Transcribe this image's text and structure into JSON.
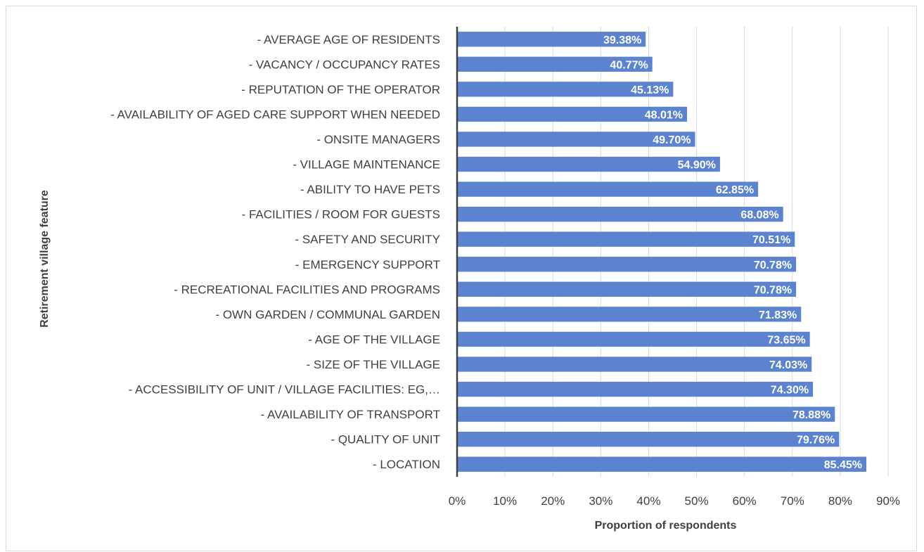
{
  "chart_data": {
    "type": "bar",
    "orientation": "horizontal",
    "title": "",
    "xlabel": "Proportion of respondents",
    "ylabel": "Retirement village feature",
    "xlim": [
      0,
      90
    ],
    "x_ticks": [
      "0%",
      "10%",
      "20%",
      "30%",
      "40%",
      "50%",
      "60%",
      "70%",
      "80%",
      "90%"
    ],
    "grid": "vertical",
    "legend": "none",
    "bar_color": "#5b83cf",
    "categories": [
      "- AVERAGE AGE OF RESIDENTS",
      "- VACANCY / OCCUPANCY RATES",
      "- REPUTATION OF THE OPERATOR",
      "- AVAILABILITY OF AGED CARE SUPPORT WHEN NEEDED",
      "- ONSITE MANAGERS",
      "- VILLAGE MAINTENANCE",
      "- ABILITY TO HAVE PETS",
      "- FACILITIES / ROOM FOR GUESTS",
      "- SAFETY AND SECURITY",
      "- EMERGENCY SUPPORT",
      "- RECREATIONAL FACILITIES AND PROGRAMS",
      "- OWN GARDEN / COMMUNAL GARDEN",
      "- AGE OF THE VILLAGE",
      "- SIZE OF THE VILLAGE",
      "- ACCESSIBILITY OF UNIT / VILLAGE FACILITIES: EG,…",
      "- AVAILABILITY OF TRANSPORT",
      "- QUALITY OF UNIT",
      "- LOCATION"
    ],
    "values": [
      39.38,
      40.77,
      45.13,
      48.01,
      49.7,
      54.9,
      62.85,
      68.08,
      70.51,
      70.78,
      70.78,
      71.83,
      73.65,
      74.03,
      74.3,
      78.88,
      79.76,
      85.45
    ],
    "data_labels": [
      "39.38%",
      "40.77%",
      "45.13%",
      "48.01%",
      "49.70%",
      "54.90%",
      "62.85%",
      "68.08%",
      "70.51%",
      "70.78%",
      "70.78%",
      "71.83%",
      "73.65%",
      "74.03%",
      "74.30%",
      "78.88%",
      "79.76%",
      "85.45%"
    ]
  }
}
